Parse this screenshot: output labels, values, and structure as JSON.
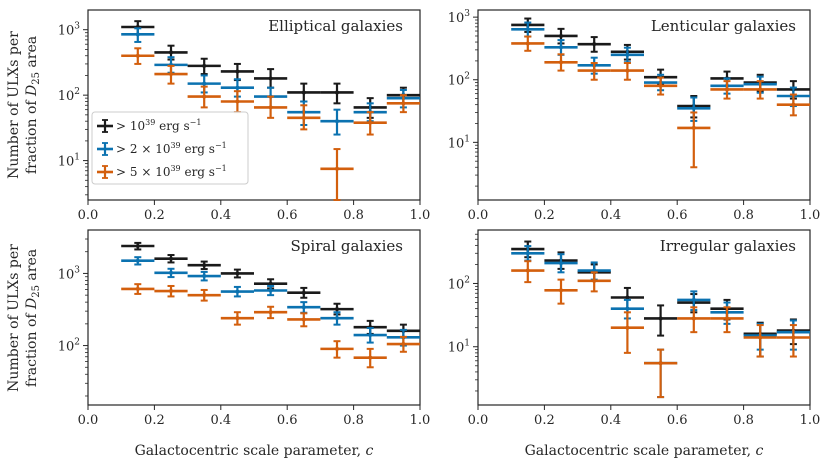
{
  "figure": {
    "shared_ylabel_line1": "Number of ULXs per",
    "shared_ylabel_line2": "fraction of D25 area",
    "shared_xlabel": "Galactocentric scale parameter, c"
  },
  "legend": {
    "location": "lower-left of top-left panel",
    "entries": [
      {
        "series": "gt1e39",
        "label": "> 10^39 erg s^-1"
      },
      {
        "series": "gt2e39",
        "label": "> 2 × 10^39 erg s^-1"
      },
      {
        "series": "gt5e39",
        "label": "> 5 × 10^39 erg s^-1"
      }
    ]
  },
  "colors": {
    "gt1e39": "#1a1a1a",
    "gt2e39": "#0b72b0",
    "gt5e39": "#d35f0d",
    "axes": "#262626"
  },
  "chart_data": [
    {
      "type": "errorbar",
      "title": "Elliptical galaxies",
      "xlabel": "",
      "ylabel": "Number of ULXs per fraction of D25 area",
      "xlim": [
        0.0,
        1.0
      ],
      "ylim": [
        2.5,
        2000
      ],
      "yscale": "log",
      "xticks": [
        "0.0",
        "0.2",
        "0.4",
        "0.6",
        "0.8",
        "1.0"
      ],
      "yticks": [
        {
          "value": 10,
          "label": "10^1"
        },
        {
          "value": 100,
          "label": "10^2"
        },
        {
          "value": 1000,
          "label": "10^3"
        }
      ],
      "x": [
        0.15,
        0.25,
        0.35,
        0.45,
        0.55,
        0.65,
        0.75,
        0.85,
        0.95
      ],
      "xerr": 0.05,
      "series": [
        {
          "name": "gt1e39",
          "values": [
            1100,
            450,
            280,
            230,
            180,
            110,
            110,
            65,
            100
          ],
          "err_low": [
            850,
            350,
            210,
            170,
            130,
            80,
            75,
            45,
            75
          ],
          "err_high": [
            1350,
            570,
            360,
            300,
            250,
            150,
            150,
            90,
            130
          ]
        },
        {
          "name": "gt2e39",
          "values": [
            850,
            290,
            150,
            130,
            95,
            55,
            40,
            55,
            90
          ],
          "err_low": [
            650,
            220,
            110,
            95,
            65,
            35,
            25,
            40,
            65
          ],
          "err_high": [
            1050,
            380,
            200,
            175,
            130,
            80,
            60,
            75,
            120
          ]
        },
        {
          "name": "gt5e39",
          "values": [
            400,
            210,
            95,
            80,
            65,
            45,
            7.5,
            38,
            75
          ],
          "err_low": [
            300,
            150,
            65,
            55,
            45,
            30,
            2.5,
            25,
            55
          ],
          "err_high": [
            520,
            280,
            135,
            115,
            95,
            70,
            15,
            55,
            100
          ]
        }
      ]
    },
    {
      "type": "errorbar",
      "title": "Lenticular galaxies",
      "xlabel": "",
      "ylabel": "",
      "xlim": [
        0.0,
        1.0
      ],
      "ylim": [
        1.2,
        1300
      ],
      "yscale": "log",
      "xticks": [
        "0.0",
        "0.2",
        "0.4",
        "0.6",
        "0.8",
        "1.0"
      ],
      "yticks": [
        {
          "value": 10,
          "label": "10^1"
        },
        {
          "value": 100,
          "label": "10^2"
        },
        {
          "value": 1000,
          "label": "10^3"
        }
      ],
      "x": [
        0.15,
        0.25,
        0.35,
        0.45,
        0.55,
        0.65,
        0.75,
        0.85,
        0.95
      ],
      "xerr": 0.05,
      "series": [
        {
          "name": "gt1e39",
          "values": [
            750,
            500,
            370,
            280,
            110,
            38,
            105,
            90,
            70
          ],
          "err_low": [
            580,
            380,
            280,
            210,
            85,
            25,
            80,
            65,
            50
          ],
          "err_high": [
            950,
            650,
            480,
            360,
            145,
            55,
            135,
            120,
            95
          ]
        },
        {
          "name": "gt2e39",
          "values": [
            640,
            330,
            170,
            250,
            90,
            35,
            80,
            85,
            55
          ],
          "err_low": [
            490,
            250,
            125,
            190,
            68,
            22,
            60,
            62,
            38
          ],
          "err_high": [
            820,
            430,
            225,
            325,
            120,
            52,
            105,
            112,
            75
          ]
        },
        {
          "name": "gt5e39",
          "values": [
            380,
            190,
            140,
            140,
            80,
            17,
            70,
            70,
            40
          ],
          "err_low": [
            290,
            140,
            100,
            100,
            58,
            4,
            50,
            50,
            27
          ],
          "err_high": [
            490,
            255,
            185,
            185,
            108,
            30,
            95,
            95,
            58
          ]
        }
      ]
    },
    {
      "type": "errorbar",
      "title": "Spiral galaxies",
      "xlabel": "Galactocentric scale parameter, c",
      "ylabel": "Number of ULXs per fraction of D25 area",
      "xlim": [
        0.0,
        1.0
      ],
      "ylim": [
        15,
        4000
      ],
      "yscale": "log",
      "xticks": [
        "0.0",
        "0.2",
        "0.4",
        "0.6",
        "0.8",
        "1.0"
      ],
      "yticks": [
        {
          "value": 100,
          "label": "10^2"
        },
        {
          "value": 1000,
          "label": "10^3"
        }
      ],
      "x": [
        0.15,
        0.25,
        0.35,
        0.45,
        0.55,
        0.65,
        0.75,
        0.85,
        0.95
      ],
      "xerr": 0.05,
      "series": [
        {
          "name": "gt1e39",
          "values": [
            2400,
            1600,
            1300,
            1000,
            720,
            540,
            320,
            180,
            160
          ],
          "err_low": [
            2150,
            1420,
            1150,
            880,
            620,
            460,
            270,
            145,
            130
          ],
          "err_high": [
            2650,
            1800,
            1460,
            1130,
            830,
            630,
            380,
            220,
            195
          ]
        },
        {
          "name": "gt2e39",
          "values": [
            1500,
            1020,
            920,
            560,
            580,
            340,
            240,
            140,
            130
          ],
          "err_low": [
            1330,
            890,
            800,
            480,
            500,
            285,
            195,
            110,
            100
          ],
          "err_high": [
            1680,
            1160,
            1050,
            650,
            670,
            400,
            290,
            175,
            165
          ]
        },
        {
          "name": "gt5e39",
          "values": [
            610,
            570,
            500,
            240,
            290,
            230,
            90,
            68,
            105
          ],
          "err_low": [
            520,
            480,
            420,
            195,
            240,
            185,
            68,
            50,
            82
          ],
          "err_high": [
            710,
            670,
            590,
            290,
            345,
            280,
            115,
            90,
            132
          ]
        }
      ]
    },
    {
      "type": "errorbar",
      "title": "Irregular galaxies",
      "xlabel": "Galactocentric scale parameter, c",
      "ylabel": "",
      "xlim": [
        0.0,
        1.0
      ],
      "ylim": [
        1.2,
        700
      ],
      "yscale": "log",
      "xticks": [
        "0.0",
        "0.2",
        "0.4",
        "0.6",
        "0.8",
        "1.0"
      ],
      "yticks": [
        {
          "value": 10,
          "label": "10^1"
        },
        {
          "value": 100,
          "label": "10^2"
        }
      ],
      "x": [
        0.15,
        0.25,
        0.35,
        0.45,
        0.55,
        0.65,
        0.75,
        0.85,
        0.95
      ],
      "xerr": 0.05,
      "series": [
        {
          "name": "gt1e39",
          "values": [
            350,
            230,
            150,
            60,
            28,
            50,
            40,
            16,
            18
          ],
          "err_low": [
            260,
            170,
            110,
            40,
            15,
            35,
            27,
            7,
            11
          ],
          "err_high": [
            460,
            310,
            200,
            85,
            45,
            68,
            55,
            24,
            27
          ]
        },
        {
          "name": "gt2e39",
          "values": [
            300,
            210,
            160,
            40,
            5.5,
            55,
            35,
            15,
            17
          ],
          "err_low": [
            230,
            150,
            115,
            28,
            1.6,
            38,
            23,
            9,
            9
          ],
          "err_high": [
            390,
            290,
            215,
            55,
            9,
            75,
            50,
            23,
            26
          ]
        },
        {
          "name": "gt5e39",
          "values": [
            160,
            78,
            110,
            20,
            5.5,
            28,
            28,
            14,
            14
          ],
          "err_low": [
            105,
            48,
            75,
            8,
            1.6,
            17,
            17,
            7,
            7
          ],
          "err_high": [
            225,
            115,
            150,
            35,
            9,
            42,
            42,
            22,
            22
          ]
        }
      ]
    }
  ]
}
